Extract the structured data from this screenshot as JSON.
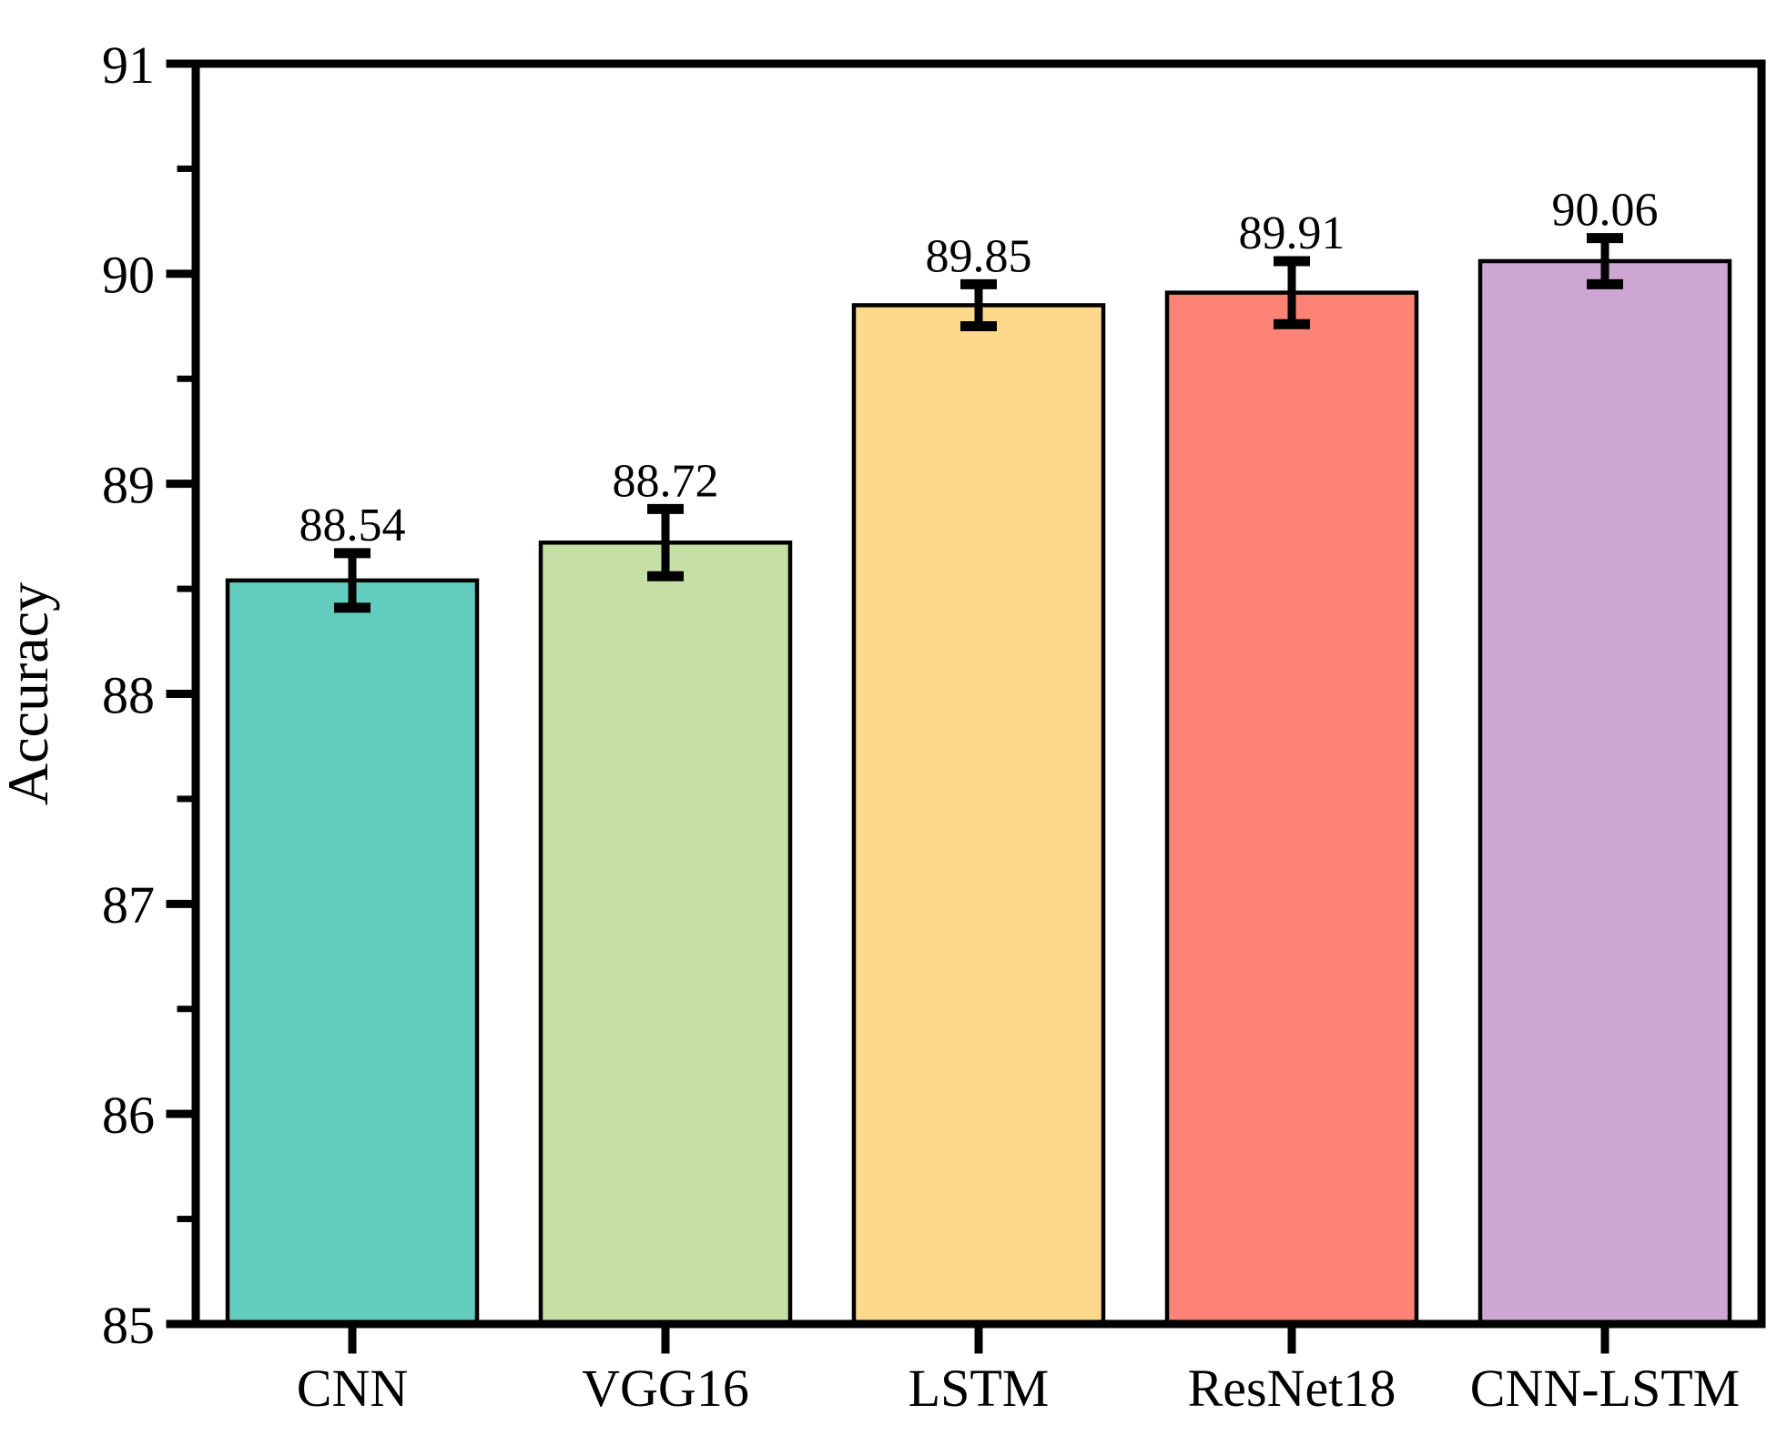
{
  "chart_data": {
    "type": "bar",
    "ylabel": "Accuracy",
    "categories": [
      "CNN",
      "VGG16",
      "LSTM",
      "ResNet18",
      "CNN-LSTM"
    ],
    "values": [
      88.54,
      88.72,
      89.85,
      89.91,
      90.06
    ],
    "value_labels": [
      "88.54",
      "88.72",
      "89.85",
      "89.91",
      "90.06"
    ],
    "errors": [
      0.13,
      0.16,
      0.1,
      0.15,
      0.11
    ],
    "bar_colors": [
      "#62cdbf",
      "#c5dfa4",
      "#fed98b",
      "#fc8375",
      "#cea6d3"
    ],
    "bar_edge_color": "#000000",
    "error_bar_color": "#000000",
    "axis_color": "#000000",
    "background_color": "#ffffff",
    "ylim": [
      85,
      91
    ],
    "yticks": [
      85,
      86,
      87,
      88,
      89,
      90,
      91
    ],
    "ytick_labels": [
      "85",
      "86",
      "87",
      "88",
      "89",
      "90",
      "91"
    ],
    "minor_tick_step": 0.5,
    "grid": false,
    "legend": "none"
  }
}
